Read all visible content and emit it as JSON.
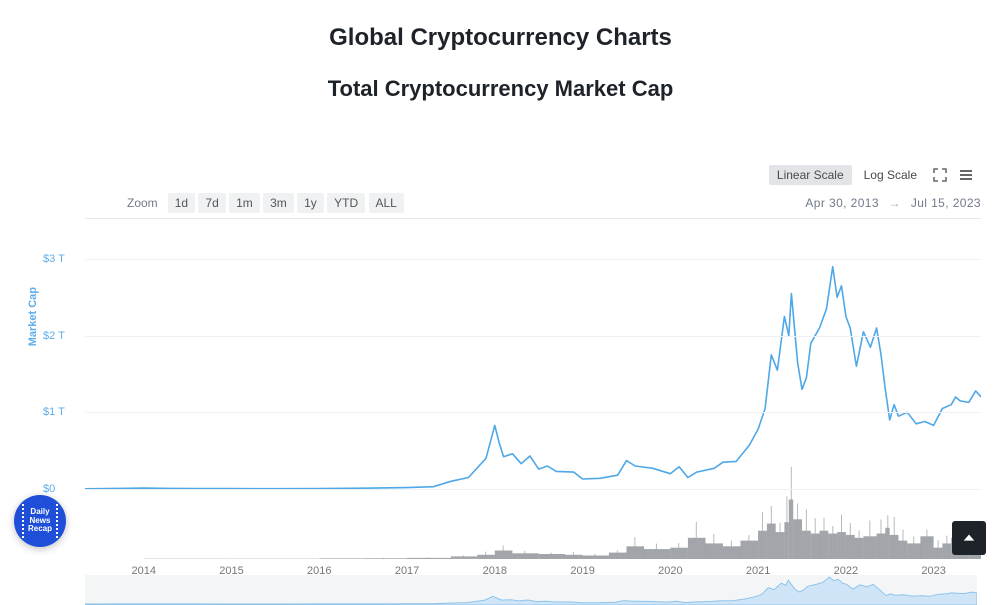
{
  "page_title": "Global Cryptocurrency Charts",
  "chart_title": "Total Cryptocurrency Market Cap",
  "scale_buttons": {
    "linear": "Linear Scale",
    "log": "Log Scale",
    "active": "linear"
  },
  "zoom": {
    "label": "Zoom",
    "ranges": [
      "1d",
      "7d",
      "1m",
      "3m",
      "1y",
      "YTD",
      "ALL"
    ],
    "active": "ALL"
  },
  "date_range": {
    "from": "Apr 30, 2013",
    "to": "Jul 15, 2023"
  },
  "chart": {
    "type": "line-with-volume",
    "y_axis_label": "Market Cap",
    "y_ticks": [
      {
        "value": 0,
        "label": "$0"
      },
      {
        "value": 1,
        "label": "$1 T"
      },
      {
        "value": 2,
        "label": "$2 T"
      },
      {
        "value": 3,
        "label": "$3 T"
      }
    ],
    "ylim": [
      0,
      3
    ],
    "x_years": [
      "2014",
      "2015",
      "2016",
      "2017",
      "2018",
      "2019",
      "2020",
      "2021",
      "2022",
      "2023"
    ],
    "x_domain": [
      2013.33,
      2023.54
    ],
    "line_color": "#4ea8e8",
    "line_width": 1.6,
    "volume_color": "#7b7f85",
    "grid_color": "#eef0f3",
    "axis_text_color": "#5cadea",
    "background_color": "#ffffff",
    "market_cap_series": [
      [
        2013.33,
        0.002
      ],
      [
        2013.7,
        0.008
      ],
      [
        2014.0,
        0.012
      ],
      [
        2014.3,
        0.008
      ],
      [
        2014.6,
        0.007
      ],
      [
        2015.0,
        0.005
      ],
      [
        2015.5,
        0.004
      ],
      [
        2016.0,
        0.007
      ],
      [
        2016.5,
        0.011
      ],
      [
        2017.0,
        0.018
      ],
      [
        2017.3,
        0.03
      ],
      [
        2017.5,
        0.1
      ],
      [
        2017.7,
        0.15
      ],
      [
        2017.9,
        0.4
      ],
      [
        2018.0,
        0.83
      ],
      [
        2018.05,
        0.6
      ],
      [
        2018.1,
        0.42
      ],
      [
        2018.2,
        0.46
      ],
      [
        2018.3,
        0.33
      ],
      [
        2018.4,
        0.43
      ],
      [
        2018.5,
        0.26
      ],
      [
        2018.6,
        0.3
      ],
      [
        2018.7,
        0.23
      ],
      [
        2018.9,
        0.22
      ],
      [
        2019.0,
        0.13
      ],
      [
        2019.2,
        0.14
      ],
      [
        2019.4,
        0.18
      ],
      [
        2019.5,
        0.37
      ],
      [
        2019.6,
        0.3
      ],
      [
        2019.8,
        0.27
      ],
      [
        2020.0,
        0.2
      ],
      [
        2020.1,
        0.29
      ],
      [
        2020.2,
        0.15
      ],
      [
        2020.3,
        0.22
      ],
      [
        2020.5,
        0.27
      ],
      [
        2020.6,
        0.35
      ],
      [
        2020.75,
        0.36
      ],
      [
        2020.9,
        0.57
      ],
      [
        2021.0,
        0.78
      ],
      [
        2021.08,
        1.05
      ],
      [
        2021.15,
        1.75
      ],
      [
        2021.22,
        1.55
      ],
      [
        2021.3,
        2.25
      ],
      [
        2021.35,
        2.0
      ],
      [
        2021.38,
        2.55
      ],
      [
        2021.45,
        1.65
      ],
      [
        2021.5,
        1.3
      ],
      [
        2021.55,
        1.45
      ],
      [
        2021.6,
        1.9
      ],
      [
        2021.7,
        2.1
      ],
      [
        2021.78,
        2.35
      ],
      [
        2021.85,
        2.9
      ],
      [
        2021.9,
        2.5
      ],
      [
        2021.95,
        2.65
      ],
      [
        2022.0,
        2.25
      ],
      [
        2022.05,
        2.1
      ],
      [
        2022.12,
        1.6
      ],
      [
        2022.2,
        2.05
      ],
      [
        2022.28,
        1.85
      ],
      [
        2022.35,
        2.1
      ],
      [
        2022.4,
        1.75
      ],
      [
        2022.45,
        1.3
      ],
      [
        2022.5,
        0.9
      ],
      [
        2022.55,
        1.1
      ],
      [
        2022.6,
        0.95
      ],
      [
        2022.7,
        1.0
      ],
      [
        2022.8,
        0.85
      ],
      [
        2022.9,
        0.88
      ],
      [
        2023.0,
        0.83
      ],
      [
        2023.1,
        1.05
      ],
      [
        2023.2,
        1.1
      ],
      [
        2023.25,
        1.2
      ],
      [
        2023.3,
        1.15
      ],
      [
        2023.4,
        1.13
      ],
      [
        2023.48,
        1.28
      ],
      [
        2023.54,
        1.2
      ]
    ],
    "volume_series": [
      [
        2013.33,
        0.0
      ],
      [
        2014.0,
        0.002
      ],
      [
        2015.0,
        0.002
      ],
      [
        2016.0,
        0.004
      ],
      [
        2016.5,
        0.005
      ],
      [
        2017.0,
        0.008
      ],
      [
        2017.5,
        0.018
      ],
      [
        2017.8,
        0.03
      ],
      [
        2018.0,
        0.06
      ],
      [
        2018.2,
        0.04
      ],
      [
        2018.5,
        0.035
      ],
      [
        2018.8,
        0.03
      ],
      [
        2019.0,
        0.025
      ],
      [
        2019.3,
        0.045
      ],
      [
        2019.5,
        0.09
      ],
      [
        2019.7,
        0.07
      ],
      [
        2020.0,
        0.08
      ],
      [
        2020.2,
        0.15
      ],
      [
        2020.4,
        0.11
      ],
      [
        2020.6,
        0.09
      ],
      [
        2020.8,
        0.13
      ],
      [
        2021.0,
        0.2
      ],
      [
        2021.1,
        0.25
      ],
      [
        2021.2,
        0.19
      ],
      [
        2021.3,
        0.26
      ],
      [
        2021.35,
        0.42
      ],
      [
        2021.4,
        0.28
      ],
      [
        2021.5,
        0.2
      ],
      [
        2021.6,
        0.18
      ],
      [
        2021.7,
        0.2
      ],
      [
        2021.8,
        0.18
      ],
      [
        2021.9,
        0.19
      ],
      [
        2022.0,
        0.17
      ],
      [
        2022.1,
        0.15
      ],
      [
        2022.2,
        0.16
      ],
      [
        2022.35,
        0.18
      ],
      [
        2022.45,
        0.22
      ],
      [
        2022.5,
        0.17
      ],
      [
        2022.6,
        0.13
      ],
      [
        2022.7,
        0.11
      ],
      [
        2022.85,
        0.16
      ],
      [
        2023.0,
        0.08
      ],
      [
        2023.1,
        0.11
      ],
      [
        2023.2,
        0.15
      ],
      [
        2023.3,
        0.09
      ],
      [
        2023.4,
        0.07
      ],
      [
        2023.5,
        0.08
      ],
      [
        2023.54,
        0.075
      ]
    ],
    "volume_band_height": 70
  },
  "navigator": {
    "bg": "#f4f5f7",
    "line_color": "#8cc4ec",
    "fill_color": "#cfe5f7"
  },
  "news_badge": {
    "line1": "Daily",
    "line2": "News",
    "line3": "Recap"
  }
}
